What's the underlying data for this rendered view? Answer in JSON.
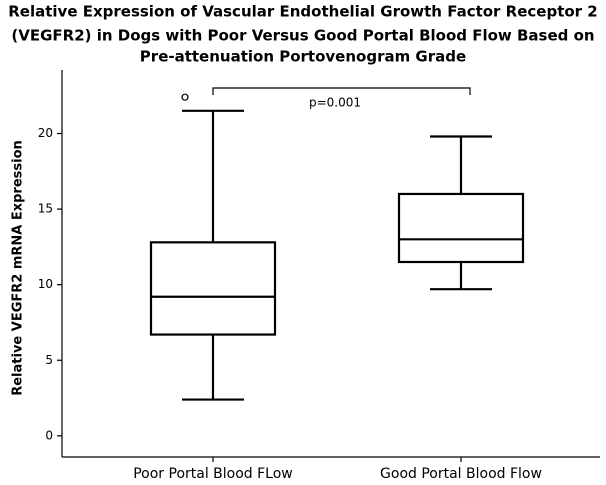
{
  "chart_data": {
    "type": "box",
    "title": [
      "Relative Expression of Vascular Endothelial Growth Factor Receptor 2",
      "(VEGFR2) in Dogs with Poor Versus Good Portal Blood Flow Based on",
      "Pre-attenuation Portovenogram Grade"
    ],
    "y_label": "Relative VEGFR2 mRNA Expression",
    "categories": [
      "Poor Portal Blood FLow",
      "Good Portal Blood Flow"
    ],
    "boxes": [
      {
        "min": 2.4,
        "q1": 6.7,
        "median": 9.2,
        "q3": 12.8,
        "max": 21.5,
        "outliers": [
          22.4
        ]
      },
      {
        "min": 9.7,
        "q1": 11.5,
        "median": 13.0,
        "q3": 16.0,
        "max": 19.8,
        "outliers": []
      }
    ],
    "annotation": "p=0.001",
    "color": "#000000",
    "ylim": [
      -1.4,
      24.2
    ],
    "yticks": [
      0,
      5,
      10,
      15,
      20
    ]
  }
}
